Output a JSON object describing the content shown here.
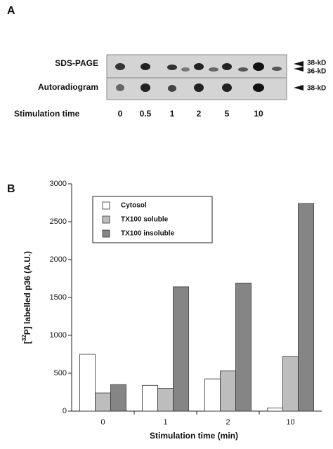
{
  "panel_a": {
    "label": "A",
    "row_labels": [
      "SDS-PAGE",
      "Autoradiogram"
    ],
    "marker_labels": [
      "38-kD",
      "36-kD",
      "38-kD"
    ],
    "x_label": "Stimulation time",
    "lanes": [
      "0",
      "0.5",
      "1",
      "2",
      "5",
      "10"
    ]
  },
  "chart_data": {
    "type": "bar",
    "panel_label": "B",
    "ylabel": {
      "pre": "[",
      "sup": "32",
      "post": "P] labelled p36 (A.U.)"
    },
    "xlabel": "Stimulation time (min)",
    "categories": [
      "0",
      "1",
      "2",
      "10"
    ],
    "series": [
      {
        "name": "Cytosol",
        "color": "#ffffff",
        "values": [
          750,
          340,
          425,
          40
        ]
      },
      {
        "name": "TX100 soluble",
        "color": "#bdbdbd",
        "values": [
          240,
          300,
          530,
          720
        ]
      },
      {
        "name": "TX100 insoluble",
        "color": "#858585",
        "values": [
          350,
          1640,
          1690,
          2740
        ]
      }
    ],
    "ylim": [
      0,
      3000
    ],
    "yticks": [
      0,
      500,
      1000,
      1500,
      2000,
      2500,
      3000
    ],
    "grid": false,
    "legend": "upper left"
  }
}
